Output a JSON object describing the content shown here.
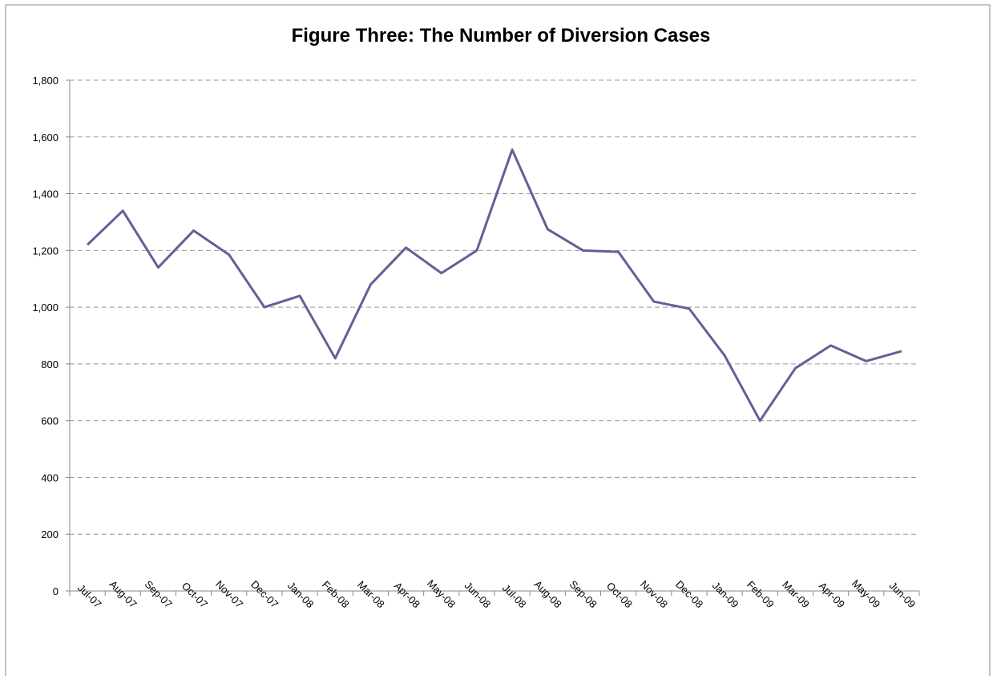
{
  "chart_data": {
    "type": "line",
    "title": "Figure Three: The Number of Diversion Cases",
    "categories": [
      "Jul-07",
      "Aug-07",
      "Sep-07",
      "Oct-07",
      "Nov-07",
      "Dec-07",
      "Jan-08",
      "Feb-08",
      "Mar-08",
      "Apr-08",
      "May-08",
      "Jun-08",
      "Jul-08",
      "Aug-08",
      "Sep-08",
      "Oct-08",
      "Nov-08",
      "Dec-08",
      "Jan-09",
      "Feb-09",
      "Mar-09",
      "Apr-09",
      "May-09",
      "Jun-09"
    ],
    "values": [
      1220,
      1340,
      1140,
      1270,
      1185,
      1000,
      1040,
      820,
      1080,
      1210,
      1120,
      1200,
      1555,
      1275,
      1200,
      1195,
      1020,
      995,
      830,
      600,
      785,
      865,
      810,
      845
    ],
    "color": "#635f98",
    "ylim": [
      0,
      1800
    ],
    "yticks": [
      0,
      200,
      400,
      600,
      800,
      {
        "value": 1000,
        "label": "1,000"
      },
      {
        "value": 1200,
        "label": "1,200"
      },
      {
        "value": 1400,
        "label": "1,400"
      },
      {
        "value": 1600,
        "label": "1,600"
      },
      {
        "value": 1800,
        "label": "1,800"
      }
    ],
    "grid": true
  }
}
